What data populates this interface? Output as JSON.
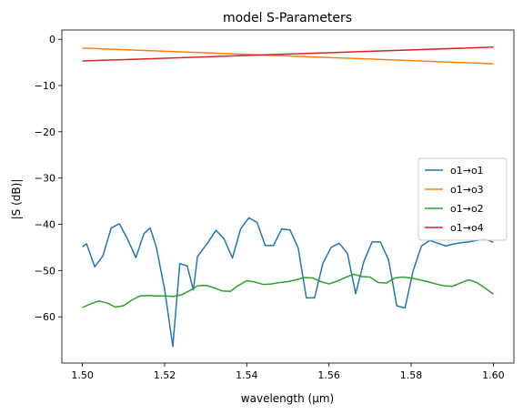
{
  "chart_data": {
    "type": "line",
    "title": "model S-Parameters",
    "xlabel": "wavelength (µm)",
    "ylabel": "|S (dB)|",
    "xlim": [
      1.495,
      1.605
    ],
    "ylim": [
      -70,
      2
    ],
    "xticks": [
      1.5,
      1.52,
      1.54,
      1.56,
      1.58,
      1.6
    ],
    "xtick_labels": [
      "1.50",
      "1.52",
      "1.54",
      "1.56",
      "1.58",
      "1.60"
    ],
    "yticks": [
      0,
      -10,
      -20,
      -30,
      -40,
      -50,
      -60
    ],
    "ytick_labels": [
      "0",
      "−10",
      "−20",
      "−30",
      "−40",
      "−50",
      "−60"
    ],
    "grid": false,
    "legend_position": "center-right",
    "series": [
      {
        "name": "o1→o1",
        "color": "#1f77b4",
        "x": [
          1.5,
          1.501,
          1.503,
          1.505,
          1.507,
          1.509,
          1.511,
          1.513,
          1.515,
          1.5165,
          1.518,
          1.52,
          1.522,
          1.5237,
          1.5255,
          1.527,
          1.528,
          1.5305,
          1.5325,
          1.5345,
          1.5365,
          1.5385,
          1.5405,
          1.5425,
          1.5445,
          1.5465,
          1.5485,
          1.5505,
          1.5525,
          1.5545,
          1.5565,
          1.5585,
          1.5605,
          1.5625,
          1.5645,
          1.5665,
          1.5685,
          1.5705,
          1.5725,
          1.5745,
          1.5765,
          1.5785,
          1.5805,
          1.5825,
          1.5845,
          1.5865,
          1.5885,
          1.59,
          1.592,
          1.594,
          1.596,
          1.598,
          1.6
        ],
        "y": [
          -44.9,
          -44.2,
          -49.2,
          -46.8,
          -40.8,
          -39.9,
          -43.2,
          -47.2,
          -42.0,
          -40.8,
          -45.0,
          -54.0,
          -66.4,
          -48.5,
          -49.0,
          -54.2,
          -47.0,
          -44.0,
          -41.3,
          -43.2,
          -47.3,
          -41.0,
          -38.6,
          -39.6,
          -44.6,
          -44.6,
          -41.0,
          -41.2,
          -45.1,
          -55.9,
          -55.9,
          -48.5,
          -45.0,
          -44.1,
          -46.3,
          -55.0,
          -48.0,
          -43.8,
          -43.8,
          -47.7,
          -57.6,
          -58.1,
          -50.0,
          -44.7,
          -43.5,
          -44.1,
          -44.7,
          -44.3,
          -44.0,
          -43.8,
          -43.5,
          -43.2,
          -43.9
        ]
      },
      {
        "name": "o1→o3",
        "color": "#ff7f0e",
        "x": [
          1.5,
          1.6
        ],
        "y": [
          -1.9,
          -5.3
        ]
      },
      {
        "name": "o1→o2",
        "color": "#2ca02c",
        "x": [
          1.5,
          1.502,
          1.504,
          1.506,
          1.508,
          1.51,
          1.512,
          1.514,
          1.516,
          1.518,
          1.52,
          1.522,
          1.524,
          1.526,
          1.528,
          1.53,
          1.532,
          1.534,
          1.536,
          1.538,
          1.54,
          1.542,
          1.544,
          1.546,
          1.548,
          1.55,
          1.552,
          1.554,
          1.556,
          1.558,
          1.56,
          1.562,
          1.564,
          1.566,
          1.568,
          1.57,
          1.572,
          1.574,
          1.576,
          1.578,
          1.58,
          1.582,
          1.584,
          1.586,
          1.588,
          1.59,
          1.592,
          1.594,
          1.596,
          1.598,
          1.6
        ],
        "y": [
          -58.0,
          -57.2,
          -56.6,
          -57.0,
          -57.9,
          -57.6,
          -56.4,
          -55.5,
          -55.4,
          -55.5,
          -55.5,
          -55.6,
          -55.3,
          -54.4,
          -53.3,
          -53.2,
          -53.7,
          -54.4,
          -54.5,
          -53.2,
          -52.2,
          -52.5,
          -53.0,
          -52.9,
          -52.6,
          -52.4,
          -52.0,
          -51.5,
          -51.6,
          -52.4,
          -52.9,
          -52.3,
          -51.5,
          -50.8,
          -51.3,
          -51.4,
          -52.6,
          -52.7,
          -51.6,
          -51.4,
          -51.6,
          -52.0,
          -52.4,
          -52.9,
          -53.3,
          -53.4,
          -52.7,
          -52.0,
          -52.6,
          -53.8,
          -55.1
        ]
      },
      {
        "name": "o1→o4",
        "color": "#d62728",
        "x": [
          1.5,
          1.6
        ],
        "y": [
          -4.7,
          -1.7
        ]
      }
    ]
  }
}
